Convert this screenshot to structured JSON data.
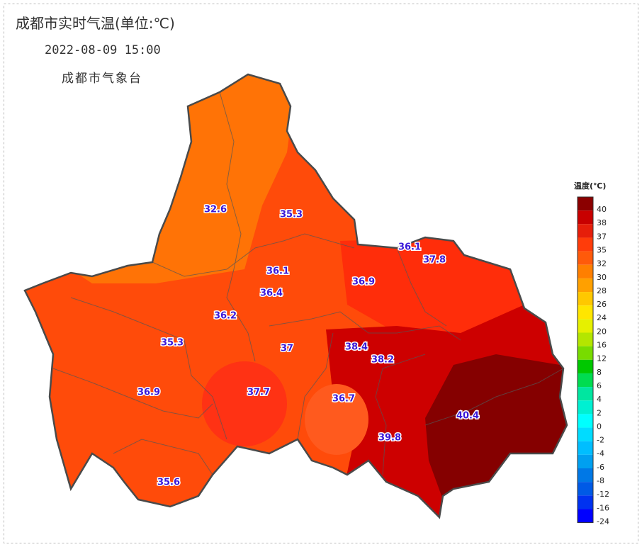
{
  "title": "成都市实时气温(单位:℃)",
  "time": "2022-08-09 15:00",
  "source": "成都市气象台",
  "stations": [
    32.6,
    35.3,
    36.1,
    37.8,
    36.1,
    36.9,
    36.4,
    36.2,
    35.3,
    37,
    38.4,
    38.2,
    36.9,
    37.7,
    36.7,
    40.4,
    39.8,
    35.6
  ],
  "legend": {
    "title": "温度(℃)",
    "levels": [
      {
        "value": 40,
        "color": "#8b0000"
      },
      {
        "value": 38,
        "color": "#c80000"
      },
      {
        "value": 37,
        "color": "#e61e0a"
      },
      {
        "value": 35,
        "color": "#ff3c0a"
      },
      {
        "value": 32,
        "color": "#ff5a0a"
      },
      {
        "value": 30,
        "color": "#ff7f00"
      },
      {
        "value": 28,
        "color": "#ffa000"
      },
      {
        "value": 26,
        "color": "#ffc800"
      },
      {
        "value": 24,
        "color": "#ffe600"
      },
      {
        "value": 20,
        "color": "#e6f000"
      },
      {
        "value": 16,
        "color": "#b4e600"
      },
      {
        "value": 12,
        "color": "#78dc00"
      },
      {
        "value": 8,
        "color": "#00c800"
      },
      {
        "value": 6,
        "color": "#00dc50"
      },
      {
        "value": 4,
        "color": "#00e6a0"
      },
      {
        "value": 2,
        "color": "#00f0d2"
      },
      {
        "value": 0,
        "color": "#00ffff"
      },
      {
        "value": -2,
        "color": "#00dcff"
      },
      {
        "value": -4,
        "color": "#00beff"
      },
      {
        "value": -6,
        "color": "#00a0f0"
      },
      {
        "value": -8,
        "color": "#0078e6"
      },
      {
        "value": -12,
        "color": "#005ae6"
      },
      {
        "value": -16,
        "color": "#0032f0"
      },
      {
        "value": -24,
        "color": "#0000ff"
      }
    ]
  }
}
